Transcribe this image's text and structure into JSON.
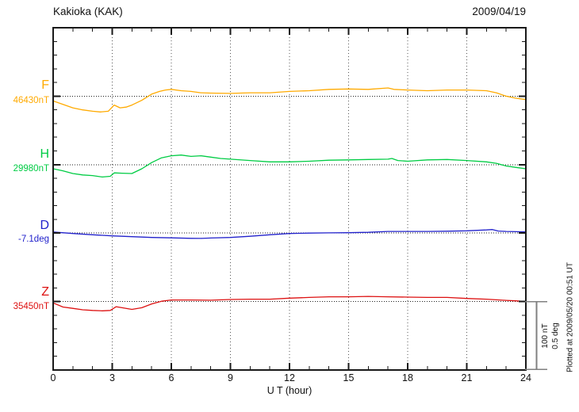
{
  "chart_data": {
    "type": "line",
    "title": "Kakioka (KAK)",
    "date": "2009/04/19",
    "xlabel": "U T (hour)",
    "x_range": [
      0,
      24
    ],
    "x_major_step_hours": 3,
    "x_minor_step_hours": 1,
    "x_major_tick_labels": [
      "0",
      "3",
      "6",
      "9",
      "12",
      "15",
      "18",
      "21",
      "24"
    ],
    "grid": {
      "vertical_dotted_hours": [
        3,
        6,
        9,
        12,
        15,
        18,
        21
      ],
      "horizontal_dotted": "one dotted baseline per series at its reference value"
    },
    "y_axis": {
      "minor_division_nT": 20,
      "major_division_nT": 100,
      "minor_division_deg": 0.1,
      "major_division_deg": 0.5
    },
    "scale_bar": {
      "line1": "100 nT",
      "line2": "0.5 deg"
    },
    "footnote": "Plotted at 2009/05/20 00:51 UT",
    "series": [
      {
        "key": "F",
        "label": "F",
        "value_label": "46430nT",
        "baseline": 46430,
        "unit": "nT",
        "color": "#FFAA00",
        "points": [
          [
            0,
            -7
          ],
          [
            0.5,
            -12
          ],
          [
            1,
            -17
          ],
          [
            1.5,
            -20
          ],
          [
            2,
            -22
          ],
          [
            2.4,
            -23
          ],
          [
            2.8,
            -22
          ],
          [
            3.1,
            -13
          ],
          [
            3.4,
            -17
          ],
          [
            3.7,
            -16
          ],
          [
            4,
            -13
          ],
          [
            4.5,
            -6
          ],
          [
            5,
            3
          ],
          [
            5.4,
            7
          ],
          [
            5.7,
            9
          ],
          [
            6,
            10
          ],
          [
            6.5,
            8
          ],
          [
            7,
            7
          ],
          [
            7.5,
            5
          ],
          [
            8,
            4.5
          ],
          [
            9,
            4
          ],
          [
            10,
            5
          ],
          [
            11,
            5
          ],
          [
            12,
            7
          ],
          [
            13,
            8
          ],
          [
            14,
            10
          ],
          [
            15,
            10.5
          ],
          [
            16,
            10
          ],
          [
            17,
            12
          ],
          [
            17.3,
            10
          ],
          [
            18,
            9
          ],
          [
            19,
            8
          ],
          [
            20,
            9
          ],
          [
            21,
            9
          ],
          [
            22,
            8
          ],
          [
            22.5,
            5
          ],
          [
            23,
            0
          ],
          [
            23.5,
            -3
          ],
          [
            24,
            -5
          ]
        ]
      },
      {
        "key": "H",
        "label": "H",
        "value_label": "29980nT",
        "baseline": 29980,
        "unit": "nT",
        "color": "#00CC44",
        "points": [
          [
            0,
            -6
          ],
          [
            0.5,
            -9
          ],
          [
            1,
            -13
          ],
          [
            1.5,
            -15
          ],
          [
            2,
            -16
          ],
          [
            2.5,
            -18
          ],
          [
            2.9,
            -17
          ],
          [
            3.1,
            -12
          ],
          [
            3.5,
            -12.5
          ],
          [
            4,
            -13
          ],
          [
            4.5,
            -6
          ],
          [
            5,
            3
          ],
          [
            5.5,
            10
          ],
          [
            6,
            13
          ],
          [
            6.5,
            14
          ],
          [
            7,
            12
          ],
          [
            7.5,
            13
          ],
          [
            8,
            11
          ],
          [
            8.5,
            9
          ],
          [
            9,
            8
          ],
          [
            10,
            6
          ],
          [
            11,
            4
          ],
          [
            12,
            4
          ],
          [
            13,
            5
          ],
          [
            14,
            6.5
          ],
          [
            15,
            7
          ],
          [
            16,
            7.5
          ],
          [
            17,
            8
          ],
          [
            17.2,
            9
          ],
          [
            17.5,
            6
          ],
          [
            18,
            5
          ],
          [
            19,
            7
          ],
          [
            20,
            7.5
          ],
          [
            21,
            6
          ],
          [
            22,
            4
          ],
          [
            22.5,
            2
          ],
          [
            23,
            -2
          ],
          [
            23.5,
            -4
          ],
          [
            24,
            -6
          ]
        ]
      },
      {
        "key": "D",
        "label": "D",
        "value_label": "-7.1deg",
        "baseline": -7.1,
        "unit": "deg",
        "color": "#2222CC",
        "points": [
          [
            0,
            0.008
          ],
          [
            1,
            -0.003
          ],
          [
            2,
            -0.012
          ],
          [
            3,
            -0.02
          ],
          [
            4,
            -0.026
          ],
          [
            5,
            -0.032
          ],
          [
            6,
            -0.035
          ],
          [
            7,
            -0.038
          ],
          [
            7.5,
            -0.039
          ],
          [
            8,
            -0.036
          ],
          [
            9,
            -0.032
          ],
          [
            10,
            -0.023
          ],
          [
            11,
            -0.012
          ],
          [
            12,
            -0.003
          ],
          [
            13,
            0
          ],
          [
            14,
            0.002
          ],
          [
            15,
            0.003
          ],
          [
            16,
            0.006
          ],
          [
            17,
            0.012
          ],
          [
            18,
            0.012
          ],
          [
            19,
            0.012
          ],
          [
            20,
            0.014
          ],
          [
            21,
            0.017
          ],
          [
            22,
            0.023
          ],
          [
            22.3,
            0.026
          ],
          [
            22.6,
            0.015
          ],
          [
            23,
            0.012
          ],
          [
            24,
            0.009
          ]
        ]
      },
      {
        "key": "Z",
        "label": "Z",
        "value_label": "35450nT",
        "baseline": 35450,
        "unit": "nT",
        "color": "#DD1111",
        "points": [
          [
            0,
            -2
          ],
          [
            0.5,
            -8
          ],
          [
            1,
            -10
          ],
          [
            1.5,
            -12
          ],
          [
            2,
            -13
          ],
          [
            2.5,
            -13.5
          ],
          [
            2.9,
            -13
          ],
          [
            3.2,
            -7.5
          ],
          [
            3.5,
            -9
          ],
          [
            4,
            -11.5
          ],
          [
            4.5,
            -9
          ],
          [
            5,
            -3.5
          ],
          [
            5.5,
            0.5
          ],
          [
            6,
            2.3
          ],
          [
            7,
            2.3
          ],
          [
            8,
            2
          ],
          [
            9,
            3
          ],
          [
            10,
            3.5
          ],
          [
            11,
            3.5
          ],
          [
            12,
            5
          ],
          [
            13,
            6
          ],
          [
            14,
            7
          ],
          [
            15,
            7
          ],
          [
            16,
            7.5
          ],
          [
            17,
            7
          ],
          [
            18,
            6.5
          ],
          [
            19,
            6
          ],
          [
            20,
            6
          ],
          [
            21,
            4.5
          ],
          [
            22,
            3.5
          ],
          [
            23,
            1.7
          ],
          [
            23.5,
            1
          ],
          [
            24,
            0
          ]
        ]
      }
    ]
  }
}
